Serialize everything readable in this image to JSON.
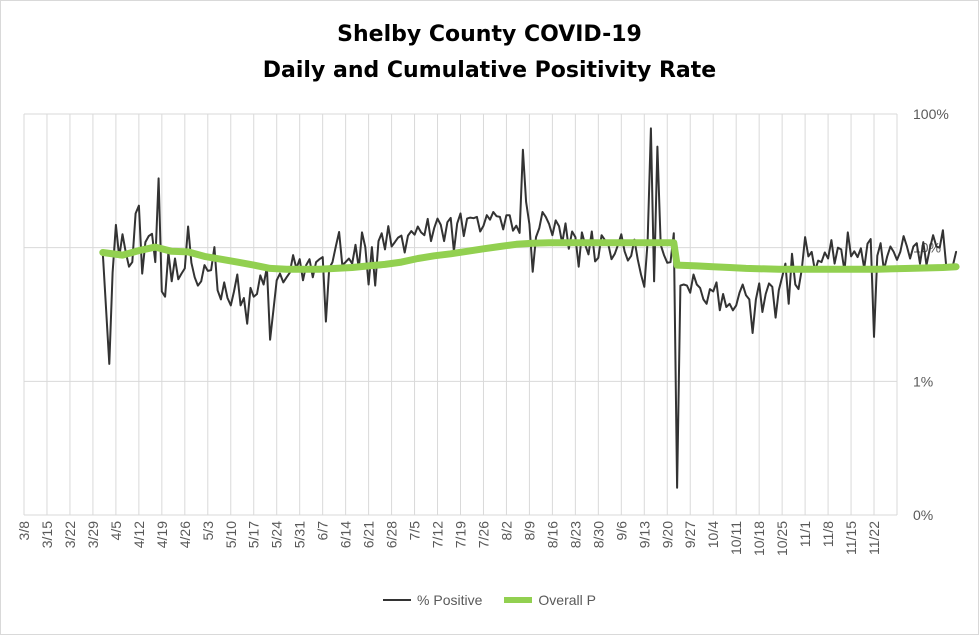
{
  "chart_data": {
    "type": "line",
    "title": "Shelby County COVID-19",
    "subtitle": "Daily and Cumulative Positivity Rate",
    "y_scale": "log",
    "ylim": [
      0.1,
      100
    ],
    "y_ticks": [
      {
        "value": 100,
        "label": "100%"
      },
      {
        "value": 10,
        "label": "10%"
      },
      {
        "value": 1,
        "label": "1%"
      },
      {
        "value": 0.1,
        "label": "0%"
      }
    ],
    "x_ticks": [
      "3/8",
      "3/15",
      "3/22",
      "3/29",
      "4/5",
      "4/12",
      "4/19",
      "4/26",
      "5/3",
      "5/10",
      "5/17",
      "5/24",
      "5/31",
      "6/7",
      "6/14",
      "6/21",
      "6/28",
      "7/5",
      "7/12",
      "7/19",
      "7/26",
      "8/2",
      "8/9",
      "8/16",
      "8/23",
      "8/30",
      "9/6",
      "9/13",
      "9/20",
      "9/27",
      "10/4",
      "10/11",
      "10/18",
      "10/25",
      "11/1",
      "11/8",
      "11/15",
      "11/22"
    ],
    "grid": true,
    "legend_position": "bottom",
    "series": [
      {
        "name": "% Positive",
        "color": "#333333",
        "points": [
          [
            24,
            9.1
          ],
          [
            26,
            1.35
          ],
          [
            27,
            6.5
          ],
          [
            28,
            14.8
          ],
          [
            29,
            8.5
          ],
          [
            30,
            12.6
          ],
          [
            31,
            9.3
          ],
          [
            32,
            7.2
          ],
          [
            33,
            7.8
          ],
          [
            34,
            18
          ],
          [
            35,
            20.6
          ],
          [
            36,
            6.4
          ],
          [
            37,
            11
          ],
          [
            38,
            12.2
          ],
          [
            39,
            12.7
          ],
          [
            40,
            7.8
          ],
          [
            41,
            33
          ],
          [
            42,
            4.7
          ],
          [
            43,
            4.3
          ],
          [
            44,
            9.2
          ],
          [
            45,
            5.6
          ],
          [
            46,
            8.3
          ],
          [
            47,
            5.8
          ],
          [
            48,
            6.4
          ],
          [
            49,
            7
          ],
          [
            50,
            14.4
          ],
          [
            51,
            7.7
          ],
          [
            52,
            6
          ],
          [
            53,
            5.2
          ],
          [
            54,
            5.6
          ],
          [
            55,
            7.4
          ],
          [
            56,
            6.7
          ],
          [
            57,
            6.8
          ],
          [
            58,
            10.1
          ],
          [
            59,
            4.8
          ],
          [
            60,
            4.1
          ],
          [
            61,
            5.5
          ],
          [
            62,
            4.2
          ],
          [
            63,
            3.7
          ],
          [
            64,
            4.7
          ],
          [
            65,
            6.3
          ],
          [
            66,
            3.7
          ],
          [
            67,
            4.2
          ],
          [
            68,
            2.7
          ],
          [
            69,
            5
          ],
          [
            70,
            4.3
          ],
          [
            71,
            4.5
          ],
          [
            72,
            6.2
          ],
          [
            73,
            5.3
          ],
          [
            74,
            7.1
          ],
          [
            75,
            2.05
          ],
          [
            76,
            3.4
          ],
          [
            77,
            5.7
          ],
          [
            78,
            6.4
          ],
          [
            79,
            5.5
          ],
          [
            80,
            6
          ],
          [
            81,
            6.5
          ],
          [
            82,
            8.8
          ],
          [
            83,
            7
          ],
          [
            84,
            8.2
          ],
          [
            85,
            5.7
          ],
          [
            86,
            7.4
          ],
          [
            87,
            8.2
          ],
          [
            88,
            6
          ],
          [
            89,
            7.8
          ],
          [
            90,
            8.2
          ],
          [
            91,
            8.5
          ],
          [
            92,
            2.8
          ],
          [
            93,
            7
          ],
          [
            94,
            7.8
          ],
          [
            95,
            10.2
          ],
          [
            96,
            13.1
          ],
          [
            97,
            7.4
          ],
          [
            98,
            7.8
          ],
          [
            99,
            8.3
          ],
          [
            100,
            7.6
          ],
          [
            101,
            10.5
          ],
          [
            102,
            7
          ],
          [
            103,
            13
          ],
          [
            104,
            10.1
          ],
          [
            105,
            5.3
          ],
          [
            106,
            10.1
          ],
          [
            107,
            5.2
          ],
          [
            108,
            11.2
          ],
          [
            109,
            12.8
          ],
          [
            110,
            9.7
          ],
          [
            111,
            14.5
          ],
          [
            112,
            10.2
          ],
          [
            113,
            11
          ],
          [
            114,
            11.9
          ],
          [
            115,
            12.3
          ],
          [
            116,
            9.2
          ],
          [
            117,
            12.3
          ],
          [
            118,
            13.3
          ],
          [
            119,
            12.5
          ],
          [
            120,
            14.4
          ],
          [
            121,
            13
          ],
          [
            122,
            12.4
          ],
          [
            123,
            16.4
          ],
          [
            124,
            11.2
          ],
          [
            125,
            14
          ],
          [
            126,
            16.5
          ],
          [
            127,
            14.8
          ],
          [
            128,
            11.2
          ],
          [
            129,
            15.5
          ],
          [
            130,
            16.7
          ],
          [
            131,
            9.4
          ],
          [
            132,
            15.2
          ],
          [
            133,
            18
          ],
          [
            134,
            12.2
          ],
          [
            135,
            16.5
          ],
          [
            136,
            16.8
          ],
          [
            137,
            16.6
          ],
          [
            138,
            17
          ],
          [
            139,
            13.2
          ],
          [
            140,
            14.6
          ],
          [
            141,
            17.5
          ],
          [
            142,
            16.2
          ],
          [
            143,
            18.5
          ],
          [
            144,
            17.2
          ],
          [
            145,
            17
          ],
          [
            146,
            13.7
          ],
          [
            147,
            17.5
          ],
          [
            148,
            17.5
          ],
          [
            149,
            13.4
          ],
          [
            150,
            14.6
          ],
          [
            151,
            12.9
          ],
          [
            152,
            54
          ],
          [
            153,
            22
          ],
          [
            154,
            15
          ],
          [
            155,
            6.6
          ],
          [
            156,
            12
          ],
          [
            157,
            14
          ],
          [
            158,
            18.5
          ],
          [
            159,
            17
          ],
          [
            160,
            15
          ],
          [
            161,
            12.4
          ],
          [
            162,
            16
          ],
          [
            163,
            14.5
          ],
          [
            164,
            10.8
          ],
          [
            165,
            15.2
          ],
          [
            166,
            9.8
          ],
          [
            167,
            13.2
          ],
          [
            168,
            12
          ],
          [
            169,
            7.2
          ],
          [
            170,
            13
          ],
          [
            171,
            10.5
          ],
          [
            172,
            8.9
          ],
          [
            173,
            13.2
          ],
          [
            174,
            7.9
          ],
          [
            175,
            8.4
          ],
          [
            176,
            12.4
          ],
          [
            177,
            11.4
          ],
          [
            178,
            10.7
          ],
          [
            179,
            8.2
          ],
          [
            180,
            9
          ],
          [
            181,
            10.5
          ],
          [
            182,
            12.6
          ],
          [
            183,
            9.4
          ],
          [
            184,
            8
          ],
          [
            185,
            8.7
          ],
          [
            186,
            11.5
          ],
          [
            187,
            8.2
          ],
          [
            188,
            6.3
          ],
          [
            189,
            5.1
          ],
          [
            190,
            11
          ],
          [
            191,
            78
          ],
          [
            192,
            5.6
          ],
          [
            193,
            57
          ],
          [
            194,
            10.5
          ],
          [
            195,
            8.8
          ],
          [
            196,
            7.7
          ],
          [
            197,
            7.8
          ],
          [
            198,
            12.8
          ],
          [
            199,
            0.16
          ],
          [
            200,
            5.2
          ],
          [
            201,
            5.3
          ],
          [
            202,
            5.2
          ],
          [
            203,
            4.6
          ],
          [
            204,
            6.3
          ],
          [
            205,
            5.3
          ],
          [
            206,
            5
          ],
          [
            207,
            4.1
          ],
          [
            208,
            3.8
          ],
          [
            209,
            4.9
          ],
          [
            210,
            4.7
          ],
          [
            211,
            5.5
          ],
          [
            212,
            3.4
          ],
          [
            213,
            4.5
          ],
          [
            214,
            3.6
          ],
          [
            215,
            3.8
          ],
          [
            216,
            3.4
          ],
          [
            217,
            3.7
          ],
          [
            218,
            4.6
          ],
          [
            219,
            5.3
          ],
          [
            220,
            4.4
          ],
          [
            221,
            4.1
          ],
          [
            222,
            2.3
          ],
          [
            223,
            4.1
          ],
          [
            224,
            5.4
          ],
          [
            225,
            3.3
          ],
          [
            226,
            4.5
          ],
          [
            227,
            5.4
          ],
          [
            228,
            5.1
          ],
          [
            229,
            3
          ],
          [
            230,
            4.8
          ],
          [
            231,
            6
          ],
          [
            232,
            7.6
          ],
          [
            233,
            3.8
          ],
          [
            234,
            9
          ],
          [
            235,
            5.3
          ],
          [
            236,
            4.9
          ],
          [
            237,
            6.9
          ],
          [
            238,
            12
          ],
          [
            239,
            8.6
          ],
          [
            240,
            9.3
          ],
          [
            241,
            6.7
          ],
          [
            242,
            8
          ],
          [
            243,
            7.8
          ],
          [
            244,
            9.2
          ],
          [
            245,
            8.3
          ],
          [
            246,
            11.4
          ],
          [
            247,
            7.6
          ],
          [
            248,
            10
          ],
          [
            249,
            9.7
          ],
          [
            250,
            6.7
          ],
          [
            251,
            13
          ],
          [
            252,
            8.6
          ],
          [
            253,
            9.4
          ],
          [
            254,
            8.5
          ],
          [
            255,
            9.9
          ],
          [
            256,
            7
          ],
          [
            257,
            10.7
          ],
          [
            258,
            11.6
          ],
          [
            259,
            2.15
          ],
          [
            260,
            8.7
          ],
          [
            261,
            10.8
          ],
          [
            262,
            6.8
          ],
          [
            263,
            8.6
          ],
          [
            264,
            10.2
          ],
          [
            265,
            9.3
          ],
          [
            266,
            8.1
          ],
          [
            267,
            9.3
          ],
          [
            268,
            12.2
          ],
          [
            269,
            10.3
          ],
          [
            270,
            8.3
          ],
          [
            271,
            10.2
          ],
          [
            272,
            10.8
          ],
          [
            273,
            7.6
          ],
          [
            274,
            11
          ],
          [
            275,
            7.4
          ],
          [
            276,
            9.8
          ],
          [
            277,
            12.4
          ],
          [
            278,
            10.2
          ],
          [
            279,
            10
          ],
          [
            280,
            13.5
          ],
          [
            281,
            7.3
          ],
          [
            282,
            7.3
          ],
          [
            283,
            7.3
          ],
          [
            284,
            9.3
          ]
        ]
      },
      {
        "name": "Overall P",
        "color": "#92d050",
        "points": [
          [
            24,
            9.2
          ],
          [
            30,
            8.8
          ],
          [
            35,
            9.5
          ],
          [
            40,
            10.1
          ],
          [
            45,
            9.4
          ],
          [
            50,
            9.3
          ],
          [
            55,
            8.6
          ],
          [
            60,
            8.2
          ],
          [
            65,
            7.8
          ],
          [
            70,
            7.4
          ],
          [
            75,
            7
          ],
          [
            80,
            6.9
          ],
          [
            85,
            6.9
          ],
          [
            90,
            6.9
          ],
          [
            95,
            7
          ],
          [
            100,
            7.1
          ],
          [
            105,
            7.3
          ],
          [
            110,
            7.5
          ],
          [
            115,
            7.8
          ],
          [
            120,
            8.3
          ],
          [
            125,
            8.7
          ],
          [
            130,
            9
          ],
          [
            135,
            9.4
          ],
          [
            140,
            9.8
          ],
          [
            145,
            10.2
          ],
          [
            150,
            10.6
          ],
          [
            155,
            10.8
          ],
          [
            160,
            10.9
          ],
          [
            165,
            10.9
          ],
          [
            170,
            10.9
          ],
          [
            175,
            10.9
          ],
          [
            180,
            10.9
          ],
          [
            185,
            10.9
          ],
          [
            190,
            10.9
          ],
          [
            195,
            10.9
          ],
          [
            198,
            10.9
          ],
          [
            199,
            7.4
          ],
          [
            205,
            7.3
          ],
          [
            210,
            7.2
          ],
          [
            215,
            7.1
          ],
          [
            220,
            7
          ],
          [
            230,
            6.9
          ],
          [
            240,
            6.9
          ],
          [
            250,
            6.9
          ],
          [
            260,
            6.9
          ],
          [
            270,
            7
          ],
          [
            280,
            7.1
          ],
          [
            284,
            7.2
          ]
        ]
      }
    ]
  }
}
